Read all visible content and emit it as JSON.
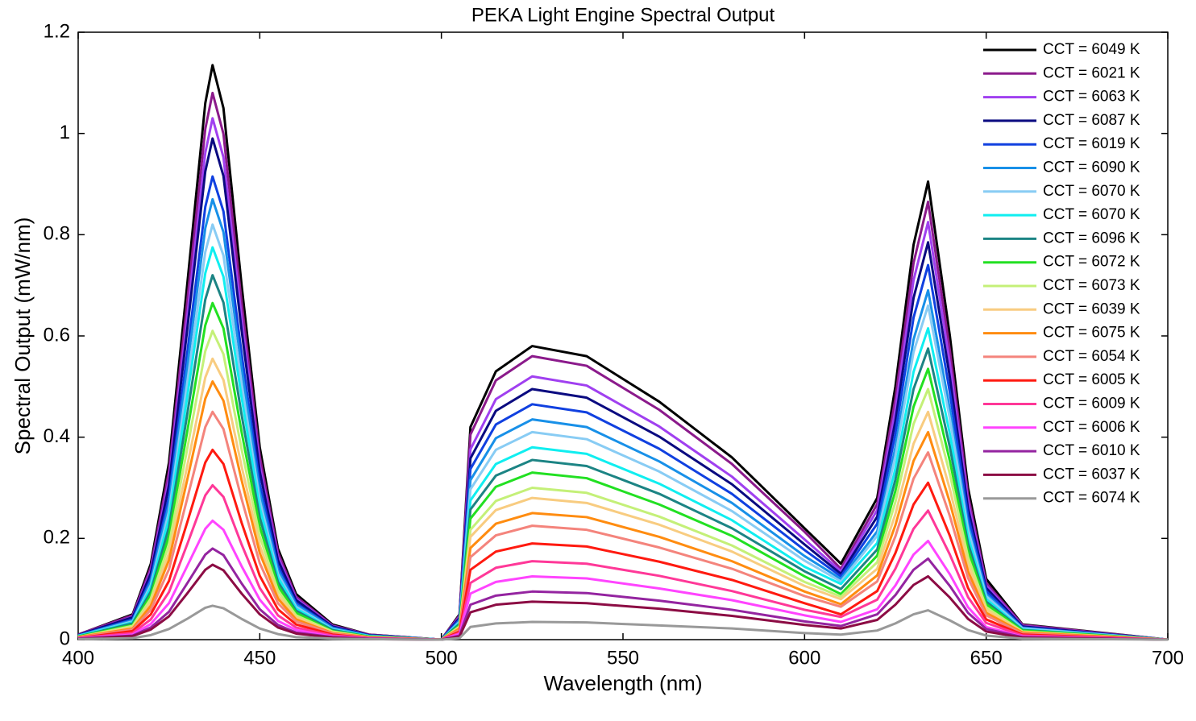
{
  "chart_data": {
    "type": "line",
    "title": "PEKA Light Engine Spectral Output",
    "x_label": "Wavelength (nm)",
    "y_label": "Spectral Output (mW/nm)",
    "xlim": [
      400,
      700
    ],
    "ylim": [
      0,
      1.2
    ],
    "xticks": [
      400,
      450,
      500,
      550,
      600,
      650,
      700
    ],
    "yticks": [
      0,
      0.2,
      0.4,
      0.6,
      0.8,
      1,
      1.2
    ],
    "legend": "upper right",
    "x": [
      400,
      415,
      420,
      425,
      430,
      435,
      437,
      440,
      445,
      450,
      455,
      460,
      470,
      480,
      500,
      505,
      508,
      515,
      525,
      540,
      560,
      580,
      600,
      610,
      620,
      625,
      630,
      634,
      640,
      645,
      650,
      660,
      700
    ],
    "series": [
      {
        "name": "CCT = 6049 K",
        "color": "#000000",
        "values": [
          0.01,
          0.05,
          0.15,
          0.35,
          0.7,
          1.06,
          1.135,
          1.05,
          0.7,
          0.38,
          0.18,
          0.09,
          0.03,
          0.01,
          0,
          0.05,
          0.42,
          0.53,
          0.58,
          0.56,
          0.47,
          0.36,
          0.22,
          0.15,
          0.28,
          0.5,
          0.78,
          0.905,
          0.6,
          0.3,
          0.12,
          0.03,
          0
        ]
      },
      {
        "name": "CCT = 6021 K",
        "color": "#8b1a8b",
        "values": [
          0.01,
          0.048,
          0.143,
          0.333,
          0.666,
          1.009,
          1.08,
          0.999,
          0.666,
          0.362,
          0.172,
          0.085,
          0.028,
          0.01,
          0,
          0.048,
          0.405,
          0.512,
          0.56,
          0.541,
          0.454,
          0.347,
          0.213,
          0.14,
          0.268,
          0.476,
          0.744,
          0.865,
          0.571,
          0.285,
          0.112,
          0.029,
          0
        ]
      },
      {
        "name": "CCT = 6063 K",
        "color": "#a040f0",
        "values": [
          0.009,
          0.045,
          0.136,
          0.317,
          0.636,
          0.962,
          1.03,
          0.953,
          0.636,
          0.345,
          0.164,
          0.081,
          0.027,
          0.009,
          0,
          0.045,
          0.376,
          0.475,
          0.52,
          0.502,
          0.421,
          0.322,
          0.198,
          0.135,
          0.256,
          0.454,
          0.71,
          0.825,
          0.545,
          0.272,
          0.107,
          0.027,
          0
        ]
      },
      {
        "name": "CCT = 6087 K",
        "color": "#0a0a80",
        "values": [
          0.009,
          0.044,
          0.131,
          0.305,
          0.611,
          0.925,
          0.99,
          0.916,
          0.611,
          0.332,
          0.157,
          0.078,
          0.026,
          0.009,
          0,
          0.043,
          0.358,
          0.452,
          0.495,
          0.478,
          0.401,
          0.307,
          0.188,
          0.13,
          0.243,
          0.432,
          0.675,
          0.785,
          0.518,
          0.259,
          0.102,
          0.026,
          0
        ]
      },
      {
        "name": "CCT = 6019 K",
        "color": "#1040e0",
        "values": [
          0.008,
          0.04,
          0.121,
          0.282,
          0.565,
          0.855,
          0.915,
          0.846,
          0.565,
          0.307,
          0.145,
          0.072,
          0.024,
          0.008,
          0,
          0.04,
          0.337,
          0.425,
          0.465,
          0.449,
          0.377,
          0.288,
          0.177,
          0.125,
          0.229,
          0.407,
          0.636,
          0.74,
          0.488,
          0.244,
          0.096,
          0.024,
          0
        ]
      },
      {
        "name": "CCT = 6090 K",
        "color": "#1890e8",
        "values": [
          0.008,
          0.038,
          0.115,
          0.268,
          0.537,
          0.813,
          0.87,
          0.805,
          0.537,
          0.291,
          0.138,
          0.069,
          0.023,
          0.008,
          0,
          0.037,
          0.315,
          0.398,
          0.435,
          0.42,
          0.352,
          0.27,
          0.165,
          0.12,
          0.214,
          0.38,
          0.593,
          0.69,
          0.455,
          0.228,
          0.09,
          0.023,
          0
        ]
      },
      {
        "name": "CCT = 6070 K",
        "color": "#88ccf4",
        "values": [
          0.007,
          0.036,
          0.108,
          0.253,
          0.506,
          0.766,
          0.82,
          0.759,
          0.506,
          0.275,
          0.13,
          0.065,
          0.021,
          0.007,
          0,
          0.035,
          0.297,
          0.375,
          0.41,
          0.396,
          0.332,
          0.254,
          0.156,
          0.115,
          0.205,
          0.363,
          0.568,
          0.66,
          0.436,
          0.218,
          0.086,
          0.022,
          0
        ]
      },
      {
        "name": "CCT = 6070 K",
        "color": "#10eef0",
        "values": [
          0.007,
          0.034,
          0.102,
          0.239,
          0.478,
          0.724,
          0.775,
          0.717,
          0.478,
          0.26,
          0.123,
          0.061,
          0.02,
          0.007,
          0,
          0.033,
          0.275,
          0.347,
          0.38,
          0.367,
          0.308,
          0.236,
          0.144,
          0.11,
          0.191,
          0.338,
          0.529,
          0.615,
          0.406,
          0.203,
          0.08,
          0.02,
          0
        ]
      },
      {
        "name": "CCT = 6096 K",
        "color": "#1c8484",
        "values": [
          0.006,
          0.032,
          0.095,
          0.222,
          0.444,
          0.672,
          0.72,
          0.666,
          0.444,
          0.241,
          0.114,
          0.057,
          0.019,
          0.006,
          0,
          0.031,
          0.257,
          0.324,
          0.355,
          0.343,
          0.288,
          0.22,
          0.135,
          0.1,
          0.178,
          0.316,
          0.495,
          0.575,
          0.38,
          0.19,
          0.075,
          0.019,
          0
        ]
      },
      {
        "name": "CCT = 6072 K",
        "color": "#22e022",
        "values": [
          0.006,
          0.029,
          0.088,
          0.205,
          0.41,
          0.621,
          0.665,
          0.615,
          0.41,
          0.223,
          0.106,
          0.053,
          0.017,
          0.006,
          0,
          0.028,
          0.239,
          0.302,
          0.33,
          0.319,
          0.267,
          0.205,
          0.125,
          0.09,
          0.166,
          0.294,
          0.46,
          0.535,
          0.353,
          0.177,
          0.07,
          0.018,
          0
        ]
      },
      {
        "name": "CCT = 6073 K",
        "color": "#c4f078",
        "values": [
          0.005,
          0.027,
          0.081,
          0.188,
          0.376,
          0.57,
          0.61,
          0.564,
          0.376,
          0.204,
          0.097,
          0.048,
          0.016,
          0.005,
          0,
          0.026,
          0.217,
          0.274,
          0.3,
          0.29,
          0.243,
          0.186,
          0.114,
          0.085,
          0.153,
          0.272,
          0.426,
          0.495,
          0.327,
          0.163,
          0.064,
          0.016,
          0
        ]
      },
      {
        "name": "CCT = 6039 K",
        "color": "#f8cc80",
        "values": [
          0.005,
          0.024,
          0.073,
          0.171,
          0.342,
          0.518,
          0.555,
          0.513,
          0.342,
          0.186,
          0.088,
          0.044,
          0.014,
          0.005,
          0,
          0.024,
          0.203,
          0.256,
          0.28,
          0.27,
          0.227,
          0.174,
          0.106,
          0.08,
          0.14,
          0.248,
          0.387,
          0.45,
          0.297,
          0.149,
          0.059,
          0.015,
          0
        ]
      },
      {
        "name": "CCT = 6075 K",
        "color": "#ff8c10",
        "values": [
          0.005,
          0.022,
          0.067,
          0.157,
          0.315,
          0.476,
          0.51,
          0.472,
          0.315,
          0.171,
          0.081,
          0.04,
          0.013,
          0.005,
          0,
          0.022,
          0.181,
          0.229,
          0.25,
          0.242,
          0.203,
          0.155,
          0.095,
          0.07,
          0.127,
          0.226,
          0.353,
          0.41,
          0.271,
          0.135,
          0.053,
          0.014,
          0
        ]
      },
      {
        "name": "CCT = 6054 K",
        "color": "#f4847c",
        "values": [
          0.004,
          0.02,
          0.059,
          0.139,
          0.278,
          0.42,
          0.45,
          0.416,
          0.278,
          0.151,
          0.072,
          0.036,
          0.012,
          0.004,
          0,
          0.019,
          0.163,
          0.206,
          0.225,
          0.217,
          0.182,
          0.14,
          0.086,
          0.065,
          0.115,
          0.204,
          0.318,
          0.37,
          0.244,
          0.122,
          0.048,
          0.012,
          0
        ]
      },
      {
        "name": "CCT = 6005 K",
        "color": "#ff1a10",
        "values": [
          0.003,
          0.017,
          0.05,
          0.116,
          0.231,
          0.35,
          0.375,
          0.347,
          0.231,
          0.126,
          0.06,
          0.03,
          0.01,
          0.003,
          0,
          0.016,
          0.138,
          0.174,
          0.19,
          0.184,
          0.154,
          0.118,
          0.072,
          0.05,
          0.096,
          0.171,
          0.267,
          0.31,
          0.205,
          0.102,
          0.04,
          0.01,
          0
        ]
      },
      {
        "name": "CCT = 6009 K",
        "color": "#ff3898",
        "values": [
          0.003,
          0.013,
          0.04,
          0.094,
          0.188,
          0.285,
          0.305,
          0.282,
          0.188,
          0.102,
          0.048,
          0.024,
          0.008,
          0.003,
          0,
          0.013,
          0.112,
          0.142,
          0.155,
          0.15,
          0.126,
          0.096,
          0.059,
          0.045,
          0.079,
          0.14,
          0.219,
          0.255,
          0.168,
          0.084,
          0.033,
          0.008,
          0
        ]
      },
      {
        "name": "CCT = 6006 K",
        "color": "#ff44ff",
        "values": [
          0.002,
          0.01,
          0.031,
          0.072,
          0.145,
          0.219,
          0.235,
          0.217,
          0.145,
          0.079,
          0.037,
          0.019,
          0.006,
          0.002,
          0,
          0.011,
          0.091,
          0.114,
          0.125,
          0.121,
          0.101,
          0.078,
          0.048,
          0.035,
          0.06,
          0.107,
          0.168,
          0.195,
          0.129,
          0.064,
          0.025,
          0.006,
          0
        ]
      },
      {
        "name": "CCT = 6010 K",
        "color": "#9424a0",
        "values": [
          0.002,
          0.008,
          0.024,
          0.055,
          0.111,
          0.168,
          0.18,
          0.167,
          0.111,
          0.06,
          0.029,
          0.014,
          0.005,
          0.002,
          0,
          0.008,
          0.069,
          0.087,
          0.095,
          0.092,
          0.077,
          0.059,
          0.036,
          0.027,
          0.05,
          0.088,
          0.138,
          0.16,
          0.106,
          0.053,
          0.021,
          0.005,
          0
        ]
      },
      {
        "name": "CCT = 6037 K",
        "color": "#8c0c44",
        "values": [
          0.001,
          0.007,
          0.02,
          0.046,
          0.091,
          0.138,
          0.148,
          0.137,
          0.091,
          0.05,
          0.024,
          0.012,
          0.004,
          0.001,
          0,
          0.006,
          0.054,
          0.069,
          0.075,
          0.072,
          0.061,
          0.047,
          0.029,
          0.022,
          0.039,
          0.069,
          0.108,
          0.125,
          0.083,
          0.041,
          0.016,
          0.004,
          0
        ]
      },
      {
        "name": "CCT = 6074 K",
        "color": "#999999",
        "values": [
          0.001,
          0.003,
          0.009,
          0.021,
          0.041,
          0.063,
          0.067,
          0.062,
          0.041,
          0.022,
          0.011,
          0.005,
          0.002,
          0.001,
          0,
          0.003,
          0.025,
          0.032,
          0.035,
          0.034,
          0.028,
          0.022,
          0.013,
          0.01,
          0.018,
          0.032,
          0.05,
          0.058,
          0.038,
          0.019,
          0.008,
          0.002,
          0
        ]
      }
    ]
  }
}
